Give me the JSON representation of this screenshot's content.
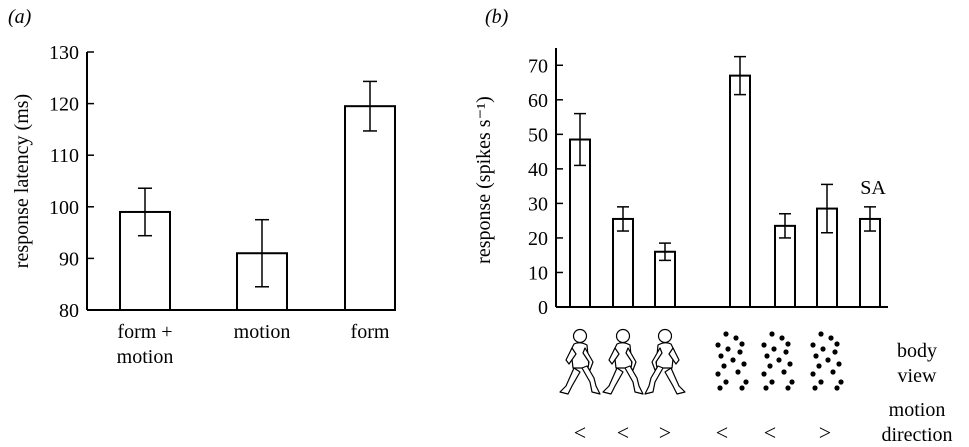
{
  "chart_data": [
    {
      "panel_label": "(a)",
      "type": "bar",
      "ylabel": "response latency (ms)",
      "ylim": [
        80,
        130
      ],
      "yticks": [
        80,
        90,
        100,
        110,
        120,
        130
      ],
      "categories": [
        "form + motion",
        "motion",
        "form"
      ],
      "category_lines": [
        [
          "form +",
          "motion"
        ],
        [
          "motion"
        ],
        [
          "form"
        ]
      ],
      "values": [
        99,
        91,
        119.5
      ],
      "error": [
        4.6,
        6.5,
        4.8
      ]
    },
    {
      "panel_label": "(b)",
      "type": "bar",
      "ylabel": "response (spikes s⁻¹)",
      "ylim": [
        0,
        75
      ],
      "yticks": [
        0,
        10,
        20,
        30,
        40,
        50,
        60,
        70
      ],
      "categories": [
        "walking figure <",
        "walking figure <",
        "walking figure >",
        "point-light <",
        "point-light <",
        "point-light >",
        "SA"
      ],
      "values": [
        48.5,
        25.5,
        16,
        67,
        23.5,
        28.5,
        25.5
      ],
      "error": [
        7.5,
        3.5,
        2.5,
        5.5,
        3.5,
        7,
        3.5
      ],
      "annotation": "SA",
      "body_view_label": [
        "body",
        "view"
      ],
      "motion_direction_label": [
        "motion",
        "direction"
      ],
      "body_view": [
        "figure",
        "figure",
        "figure-right",
        "dots",
        "dots",
        "dots"
      ],
      "motion_direction": [
        "<",
        "<",
        ">",
        "<",
        "<",
        ">"
      ]
    }
  ]
}
